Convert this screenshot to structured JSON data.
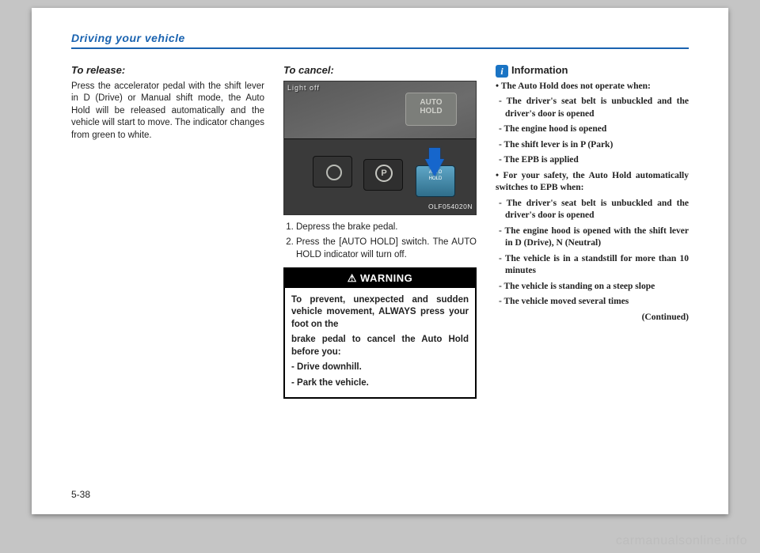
{
  "header": {
    "section": "Driving your vehicle"
  },
  "page_number": "5-38",
  "watermark": "carmanualsonline.info",
  "col1": {
    "heading": "To release:",
    "body": "Press the accelerator pedal with the shift lever in D (Drive) or Manual shift mode, the Auto Hold will be released automatically and the vehicle will start to move. The indicator changes from green to white."
  },
  "col2": {
    "heading": "To cancel:",
    "figure": {
      "top_label": "Light off",
      "button_text": "AUTO\nHOLD",
      "code": "OLF054020N"
    },
    "steps": [
      "Depress the brake pedal.",
      "Press the [AUTO HOLD] switch. The AUTO HOLD indicator will turn off."
    ],
    "warning": {
      "title": "WARNING",
      "p1": "To prevent, unexpected and sudden vehicle movement, ALWAYS press your foot on the",
      "p2": "brake pedal to cancel the Auto Hold before you:",
      "items": [
        "- Drive downhill.",
        "- Park the vehicle."
      ]
    }
  },
  "col3": {
    "info_label": "Information",
    "bullets": [
      "• The Auto Hold does not operate when:",
      "- The driver's seat belt is unbuckled and the driver's door is opened",
      "- The engine hood is opened",
      "- The shift lever is in P (Park)",
      "- The EPB is applied",
      "• For your safety, the Auto Hold auto­matically switches to EPB when:",
      "- The driver's seat belt is unbuckled and the driver's door is opened",
      "- The engine hood is opened with the shift lever in D (Drive), N (Neutral)",
      "- The vehicle is in a standstill for more than 10 minutes",
      "- The vehicle is standing on a steep slope",
      "- The vehicle moved several times"
    ],
    "continued": "(Continued)"
  }
}
